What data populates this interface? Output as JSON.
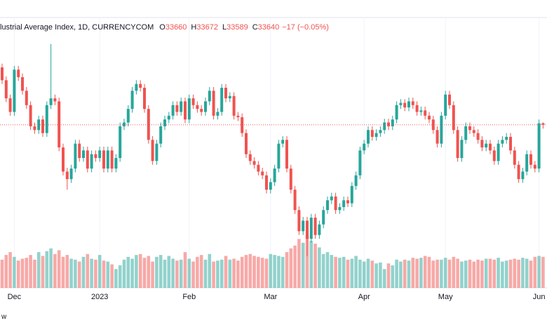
{
  "chart_data": {
    "type": "candlestick",
    "title": "lustrial Average Index, 1D, CURRENCYCOM",
    "ohlc_labels": [
      "O",
      "H",
      "L",
      "C"
    ],
    "change_label": "−17 (−0.05%)",
    "up_color": "#26a69a",
    "down_color": "#ef5350",
    "ylim": [
      31480,
      35060
    ],
    "xticks": [
      {
        "value": 3,
        "label": "Dec"
      },
      {
        "value": 24,
        "label": "2023"
      },
      {
        "value": 46,
        "label": "Feb"
      },
      {
        "value": 66,
        "label": "Mar"
      },
      {
        "value": 89,
        "label": "Apr"
      },
      {
        "value": 109,
        "label": "May"
      },
      {
        "value": 132,
        "label": "Jun"
      }
    ],
    "open": [
      34400,
      34230,
      33990,
      33810,
      34370,
      34270,
      34090,
      33900,
      33620,
      33570,
      33710,
      33530,
      33900,
      33990,
      33950,
      33340,
      33020,
      32920,
      33060,
      33390,
      33200,
      33300,
      33060,
      33250,
      33200,
      33300,
      33060,
      33300,
      33060,
      33200,
      33620,
      33670,
      33850,
      34090,
      34180,
      34130,
      33850,
      33440,
      33160,
      33390,
      33620,
      33710,
      33760,
      33900,
      33810,
      33950,
      33710,
      33990,
      33900,
      33850,
      33810,
      33950,
      34090,
      33760,
      33810,
      34130,
      33990,
      34020,
      33760,
      33740,
      33530,
      33250,
      33160,
      33110,
      33020,
      32970,
      32780,
      32880,
      33060,
      33390,
      33440,
      33060,
      32780,
      32510,
      32230,
      32370,
      32130,
      32410,
      32180,
      32320,
      32510,
      32640,
      32690,
      32510,
      32550,
      32640,
      32600,
      32830,
      32970,
      33300,
      33390,
      33570,
      33480,
      33530,
      33570,
      33670,
      33620,
      33710,
      33900,
      33930,
      33870,
      33950,
      33900,
      33810,
      33830,
      33760,
      33710,
      33570,
      33390,
      33760,
      34040,
      33900,
      33570,
      33200,
      33440,
      33620,
      33570,
      33530,
      33440,
      33340,
      33390,
      33300,
      33160,
      33390,
      33440,
      33480,
      33300,
      33110,
      32920,
      33020,
      33250,
      33110,
      33060,
      33660
    ],
    "high": [
      34450,
      34280,
      34040,
      34420,
      34420,
      34320,
      34140,
      33950,
      33670,
      33760,
      33760,
      33950,
      34710,
      34040,
      34000,
      33390,
      33070,
      33110,
      33440,
      33440,
      33350,
      33350,
      33300,
      33300,
      33350,
      33350,
      33350,
      33350,
      33250,
      33670,
      33720,
      33900,
      34140,
      34230,
      34230,
      34180,
      33900,
      33490,
      33440,
      33670,
      33760,
      33810,
      33950,
      33950,
      34000,
      34000,
      34040,
      34040,
      33950,
      33900,
      34000,
      34140,
      34140,
      33860,
      34180,
      34180,
      34070,
      34070,
      33810,
      33790,
      33580,
      33300,
      33210,
      33160,
      33070,
      33020,
      32930,
      33110,
      33440,
      33490,
      33490,
      33110,
      32830,
      32560,
      32420,
      32420,
      32460,
      32460,
      32370,
      32560,
      32690,
      32740,
      32740,
      32600,
      32690,
      32690,
      32880,
      33020,
      33350,
      33440,
      33620,
      33620,
      33580,
      33620,
      33720,
      33720,
      33760,
      33950,
      33980,
      33980,
      34000,
      34000,
      33950,
      33880,
      33880,
      33810,
      33760,
      33620,
      33810,
      34090,
      34090,
      33950,
      33620,
      33490,
      33670,
      33670,
      33620,
      33580,
      33490,
      33440,
      33440,
      33350,
      33440,
      33490,
      33530,
      33530,
      33350,
      33160,
      33070,
      33300,
      33300,
      33160,
      33710,
      33672
    ],
    "low": [
      34180,
      33940,
      33760,
      33760,
      34220,
      34040,
      33850,
      33570,
      33520,
      33520,
      33480,
      33480,
      33850,
      33900,
      33290,
      32970,
      32780,
      32870,
      33010,
      33150,
      33150,
      33010,
      33010,
      33150,
      33150,
      33010,
      33010,
      33010,
      33010,
      33150,
      33570,
      33620,
      33800,
      34040,
      34080,
      33800,
      33390,
      33110,
      33110,
      33340,
      33570,
      33660,
      33710,
      33760,
      33760,
      33660,
      33660,
      33850,
      33800,
      33760,
      33760,
      33900,
      33710,
      33710,
      33760,
      33940,
      33940,
      33710,
      33690,
      33480,
      33200,
      33110,
      33060,
      32970,
      32920,
      32730,
      32730,
      32830,
      33010,
      33340,
      33010,
      32730,
      32460,
      32180,
      32180,
      31900,
      32080,
      32130,
      32130,
      32270,
      32460,
      32590,
      32460,
      32460,
      32500,
      32550,
      32550,
      32780,
      32920,
      33250,
      33340,
      33430,
      33430,
      33480,
      33520,
      33570,
      33570,
      33660,
      33850,
      33820,
      33820,
      33850,
      33760,
      33760,
      33710,
      33660,
      33520,
      33340,
      33340,
      33710,
      33850,
      33520,
      33150,
      33150,
      33390,
      33520,
      33480,
      33390,
      33290,
      33290,
      33250,
      33110,
      33110,
      33340,
      33390,
      33250,
      33060,
      32870,
      32870,
      32970,
      33060,
      33010,
      33010,
      33589
    ],
    "close": [
      34230,
      33990,
      33810,
      34370,
      34270,
      34090,
      33900,
      33620,
      33570,
      33710,
      33530,
      33900,
      33990,
      33950,
      33340,
      33020,
      32920,
      33060,
      33390,
      33200,
      33300,
      33060,
      33250,
      33200,
      33300,
      33060,
      33300,
      33060,
      33200,
      33620,
      33670,
      33850,
      34090,
      34180,
      34130,
      33850,
      33440,
      33160,
      33390,
      33620,
      33710,
      33760,
      33900,
      33810,
      33950,
      33710,
      33990,
      33900,
      33850,
      33810,
      33950,
      34090,
      33760,
      33810,
      34130,
      33990,
      34020,
      33760,
      33740,
      33530,
      33250,
      33160,
      33110,
      33020,
      32970,
      32780,
      32880,
      33060,
      33390,
      33440,
      33060,
      32780,
      32510,
      32230,
      32370,
      32130,
      32410,
      32180,
      32320,
      32510,
      32640,
      32690,
      32510,
      32550,
      32640,
      32600,
      32830,
      32970,
      33300,
      33390,
      33570,
      33480,
      33530,
      33570,
      33670,
      33620,
      33710,
      33900,
      33930,
      33870,
      33950,
      33900,
      33810,
      33830,
      33760,
      33710,
      33570,
      33390,
      33760,
      34040,
      33900,
      33570,
      33200,
      33440,
      33620,
      33570,
      33530,
      33440,
      33340,
      33390,
      33300,
      33160,
      33390,
      33440,
      33480,
      33300,
      33110,
      32920,
      33020,
      33250,
      33110,
      33060,
      33660,
      33640
    ],
    "volume": [
      300,
      350,
      380,
      330,
      290,
      310,
      320,
      350,
      300,
      380,
      340,
      390,
      420,
      360,
      400,
      330,
      350,
      310,
      300,
      280,
      330,
      360,
      310,
      300,
      350,
      290,
      280,
      250,
      200,
      240,
      300,
      330,
      310,
      350,
      360,
      320,
      340,
      280,
      330,
      350,
      300,
      340,
      310,
      290,
      300,
      380,
      310,
      280,
      330,
      350,
      300,
      360,
      280,
      290,
      300,
      340,
      300,
      310,
      290,
      330,
      350,
      360,
      340,
      330,
      320,
      310,
      360,
      350,
      340,
      330,
      380,
      420,
      450,
      520,
      480,
      560,
      500,
      470,
      430,
      360,
      380,
      350,
      330,
      320,
      330,
      300,
      310,
      340,
      300,
      280,
      310,
      290,
      260,
      270,
      200,
      260,
      240,
      300,
      280,
      300,
      290,
      320,
      310,
      320,
      340,
      330,
      290,
      300,
      300,
      320,
      300,
      330,
      310,
      280,
      290,
      300,
      280,
      300,
      290,
      310,
      310,
      300,
      320,
      280,
      290,
      300,
      310,
      300,
      320,
      310,
      290,
      330,
      340,
      330
    ],
    "footer": "w"
  }
}
